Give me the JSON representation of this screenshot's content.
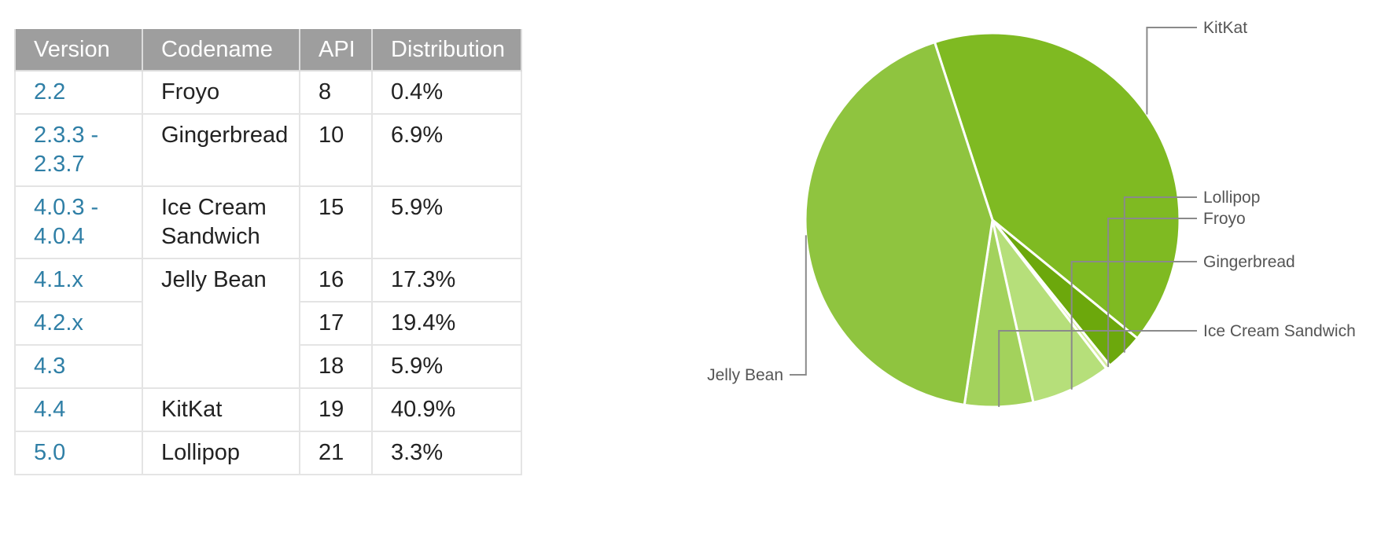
{
  "table": {
    "headers": [
      "Version",
      "Codename",
      "API",
      "Distribution"
    ],
    "rows": [
      {
        "version": "2.2",
        "codename": "Froyo",
        "api": "8",
        "distribution": "0.4%"
      },
      {
        "version": "2.3.3 - 2.3.7",
        "codename": "Gingerbread",
        "api": "10",
        "distribution": "6.9%"
      },
      {
        "version": "4.0.3 - 4.0.4",
        "codename": "Ice Cream Sandwich",
        "api": "15",
        "distribution": "5.9%"
      },
      {
        "version": "4.1.x",
        "codename": "Jelly Bean",
        "api": "16",
        "distribution": "17.3%"
      },
      {
        "version": "4.2.x",
        "codename": "",
        "api": "17",
        "distribution": "19.4%"
      },
      {
        "version": "4.3",
        "codename": "",
        "api": "18",
        "distribution": "5.9%"
      },
      {
        "version": "4.4",
        "codename": "KitKat",
        "api": "19",
        "distribution": "40.9%"
      },
      {
        "version": "5.0",
        "codename": "Lollipop",
        "api": "21",
        "distribution": "3.3%"
      }
    ]
  },
  "chart_data": {
    "type": "pie",
    "title": "",
    "slices": [
      {
        "label": "KitKat",
        "value": 40.9,
        "color": "#7fba22"
      },
      {
        "label": "Lollipop",
        "value": 3.3,
        "color": "#6ca80c"
      },
      {
        "label": "Froyo",
        "value": 0.4,
        "color": "#d5ec9e"
      },
      {
        "label": "Gingerbread",
        "value": 6.9,
        "color": "#b6df7a"
      },
      {
        "label": "Ice Cream Sandwich",
        "value": 5.9,
        "color": "#a3d25c"
      },
      {
        "label": "Jelly Bean",
        "value": 42.6,
        "color": "#8fc43f"
      }
    ],
    "legend": "outside labels with leader lines"
  }
}
